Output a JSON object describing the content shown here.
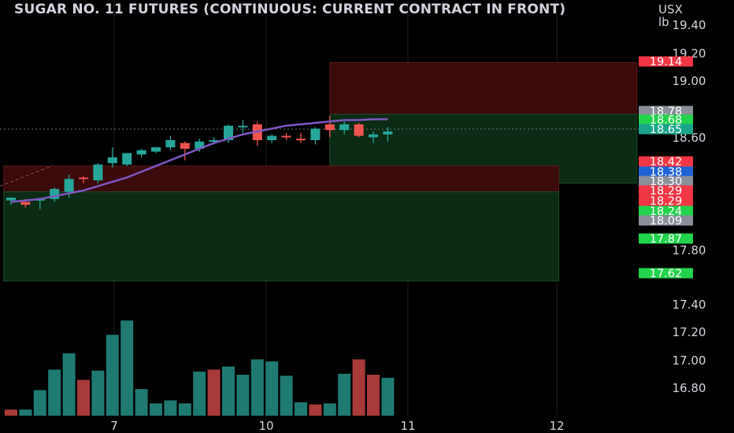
{
  "header": {
    "title": "SUGAR NO. 11 FUTURES (CONTINUOUS: CURRENT CONTRACT IN FRONT)",
    "currency": "USX",
    "unit": "lb"
  },
  "colors": {
    "background": "#000000",
    "bull": "#26a69a",
    "bear": "#ef5350",
    "ma": "#7e57c2",
    "stop_zone": "#3b0a0a",
    "target_zone": "#0b2b14",
    "grid": "#1f1f1f",
    "axis_text": "#d1d4dc"
  },
  "chart_data": {
    "type": "candlestick",
    "title": "SUGAR NO. 11 FUTURES (CONTINUOUS: CURRENT CONTRACT IN FRONT)",
    "x_tick_labels": [
      {
        "label": "7",
        "index": 7.5
      },
      {
        "label": "10",
        "index": 17.5
      },
      {
        "label": "11",
        "index": 27.5
      },
      {
        "label": "12",
        "index": 37.5
      }
    ],
    "y_tick_labels": [
      "19.40",
      "19.20",
      "19.00",
      "18.60",
      "17.80",
      "17.40",
      "17.20",
      "17.00",
      "16.80"
    ],
    "ylim": [
      16.66,
      19.46
    ],
    "candles": [
      {
        "o": 18.18,
        "h": 18.2,
        "l": 18.15,
        "c": 18.2,
        "dir": "bull"
      },
      {
        "o": 18.17,
        "h": 18.19,
        "l": 18.13,
        "c": 18.15,
        "dir": "bear"
      },
      {
        "o": 18.18,
        "h": 18.2,
        "l": 18.12,
        "c": 18.19,
        "dir": "bull"
      },
      {
        "o": 18.19,
        "h": 18.27,
        "l": 18.17,
        "c": 18.26,
        "dir": "bull"
      },
      {
        "o": 18.24,
        "h": 18.36,
        "l": 18.2,
        "c": 18.33,
        "dir": "bull"
      },
      {
        "o": 18.34,
        "h": 18.35,
        "l": 18.3,
        "c": 18.34,
        "dir": "bear"
      },
      {
        "o": 18.32,
        "h": 18.44,
        "l": 18.3,
        "c": 18.43,
        "dir": "bull"
      },
      {
        "o": 18.44,
        "h": 18.55,
        "l": 18.41,
        "c": 18.48,
        "dir": "bull"
      },
      {
        "o": 18.43,
        "h": 18.51,
        "l": 18.42,
        "c": 18.51,
        "dir": "bull"
      },
      {
        "o": 18.5,
        "h": 18.54,
        "l": 18.48,
        "c": 18.53,
        "dir": "bull"
      },
      {
        "o": 18.52,
        "h": 18.55,
        "l": 18.51,
        "c": 18.55,
        "dir": "bull"
      },
      {
        "o": 18.55,
        "h": 18.63,
        "l": 18.53,
        "c": 18.6,
        "dir": "bull"
      },
      {
        "o": 18.58,
        "h": 18.59,
        "l": 18.46,
        "c": 18.54,
        "dir": "bear"
      },
      {
        "o": 18.54,
        "h": 18.61,
        "l": 18.52,
        "c": 18.59,
        "dir": "bull"
      },
      {
        "o": 18.59,
        "h": 18.62,
        "l": 18.57,
        "c": 18.6,
        "dir": "bull"
      },
      {
        "o": 18.6,
        "h": 18.71,
        "l": 18.58,
        "c": 18.7,
        "dir": "bull"
      },
      {
        "o": 18.7,
        "h": 18.74,
        "l": 18.65,
        "c": 18.69,
        "dir": "bull"
      },
      {
        "o": 18.71,
        "h": 18.73,
        "l": 18.56,
        "c": 18.6,
        "dir": "bear"
      },
      {
        "o": 18.6,
        "h": 18.64,
        "l": 18.58,
        "c": 18.63,
        "dir": "bull"
      },
      {
        "o": 18.63,
        "h": 18.65,
        "l": 18.6,
        "c": 18.62,
        "dir": "bear"
      },
      {
        "o": 18.61,
        "h": 18.65,
        "l": 18.58,
        "c": 18.6,
        "dir": "bear"
      },
      {
        "o": 18.6,
        "h": 18.69,
        "l": 18.57,
        "c": 18.68,
        "dir": "bull"
      },
      {
        "o": 18.71,
        "h": 18.77,
        "l": 18.62,
        "c": 18.67,
        "dir": "bear"
      },
      {
        "o": 18.67,
        "h": 18.73,
        "l": 18.64,
        "c": 18.71,
        "dir": "bull"
      },
      {
        "o": 18.71,
        "h": 18.72,
        "l": 18.62,
        "c": 18.63,
        "dir": "bear"
      },
      {
        "o": 18.62,
        "h": 18.66,
        "l": 18.58,
        "c": 18.64,
        "dir": "bull"
      },
      {
        "o": 18.64,
        "h": 18.69,
        "l": 18.59,
        "c": 18.66,
        "dir": "bull"
      }
    ],
    "moving_average": [
      18.17,
      18.18,
      18.19,
      18.21,
      18.23,
      18.25,
      18.28,
      18.31,
      18.34,
      18.38,
      18.42,
      18.46,
      18.5,
      18.54,
      18.58,
      18.61,
      18.64,
      18.66,
      18.68,
      18.7,
      18.71,
      18.72,
      18.73,
      18.74,
      18.74,
      18.745,
      18.745
    ],
    "volume": [
      0.06,
      0.06,
      0.25,
      0.45,
      0.61,
      0.35,
      0.44,
      0.79,
      0.93,
      0.26,
      0.12,
      0.15,
      0.12,
      0.43,
      0.45,
      0.48,
      0.4,
      0.55,
      0.53,
      0.39,
      0.13,
      0.11,
      0.12,
      0.41,
      0.55,
      0.4,
      0.37
    ],
    "volume_dir": [
      "bear",
      "bull",
      "bull",
      "bull",
      "bull",
      "bear",
      "bull",
      "bull",
      "bull",
      "bull",
      "bull",
      "bull",
      "bull",
      "bull",
      "bear",
      "bull",
      "bull",
      "bull",
      "bull",
      "bull",
      "bull",
      "bear",
      "bull",
      "bull",
      "bear",
      "bear",
      "bull"
    ],
    "zones": [
      {
        "kind": "stop",
        "from_index": 22,
        "to_index": 43.2,
        "low": 18.78,
        "high": 19.14
      },
      {
        "kind": "target",
        "from_index": 22,
        "to_index": 43.2,
        "low": 18.3,
        "high": 18.78
      },
      {
        "kind": "stop",
        "from_index": -0.5,
        "to_index": 37.8,
        "low": 18.24,
        "high": 18.42
      },
      {
        "kind": "target",
        "from_index": -0.5,
        "to_index": 37.8,
        "low": 17.62,
        "high": 18.24
      }
    ],
    "price_labels": [
      {
        "value": 19.14,
        "text": "19.14",
        "color": "#f23645"
      },
      {
        "value": 18.78,
        "text": "18.78",
        "color": "#8a8f9a"
      },
      {
        "value": 18.68,
        "text": "18.68",
        "color": "#22d34c"
      },
      {
        "value": 18.65,
        "text": "18.65",
        "color": "#1aa58a"
      },
      {
        "value": 18.42,
        "text": "18.42",
        "color": "#f23645"
      },
      {
        "value": 18.38,
        "text": "18.38",
        "color": "#1e63d6"
      },
      {
        "value": 18.3,
        "text": "18.30",
        "color": "#8a8f9a"
      },
      {
        "value": 18.29,
        "text": "18.29",
        "color": "#f23645"
      },
      {
        "value": 18.29,
        "text": "18.29",
        "color": "#f23645"
      },
      {
        "value": 18.24,
        "text": "18.24",
        "color": "#22d34c"
      },
      {
        "value": 18.09,
        "text": "18.09",
        "color": "#8a8f9a"
      },
      {
        "value": 17.87,
        "text": "17.87",
        "color": "#22d34c"
      },
      {
        "value": 17.62,
        "text": "17.62",
        "color": "#22d34c"
      }
    ]
  }
}
